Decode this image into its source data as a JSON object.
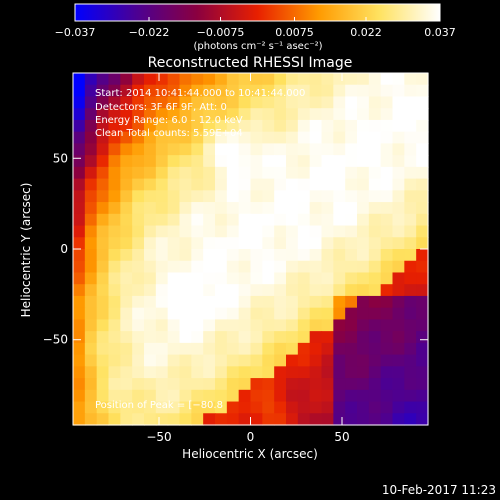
{
  "chart_data": {
    "type": "heatmap",
    "title": "Reconstructed RHESSI Image",
    "xlabel": "Heliocentric X (arcsec)",
    "ylabel": "Heliocentric Y (arcsec)",
    "xlim": [
      -97,
      97
    ],
    "ylim": [
      -97,
      97
    ],
    "x_ticks": [
      -50,
      0,
      50
    ],
    "y_ticks": [
      50,
      0,
      -50
    ],
    "x_tick_labels": [
      "−50",
      "0",
      "50"
    ],
    "y_tick_labels": [
      "50",
      "0",
      "−50"
    ],
    "colorbar": {
      "min": -0.037,
      "max": 0.037,
      "ticks": [
        -0.037,
        -0.022,
        -0.0075,
        0.0075,
        0.022,
        0.037
      ],
      "tick_labels": [
        "−0.037",
        "−0.022",
        "−0.0075",
        "0.0075",
        "0.022",
        "0.037"
      ],
      "units_label": "(photons cm⁻² s⁻¹ asec⁻²)",
      "colors": [
        "#0000ff",
        "#4b0094",
        "#8a0040",
        "#e82000",
        "#ff9a00",
        "#ffe260",
        "#ffffff"
      ]
    },
    "annotations": [
      "Start: 2014 10:41:44.000 to 10:41:44.000",
      "Detectors: 3F 6F 9F, Att: 0",
      "Energy Range: 6.0 – 12.0 keV",
      "Clean    Total counts: 5.59E+04",
      "Position of Peak = [−80.8"
    ],
    "grid": false
  },
  "footer": {
    "timestamp": "10-Feb-2017 11:23"
  }
}
